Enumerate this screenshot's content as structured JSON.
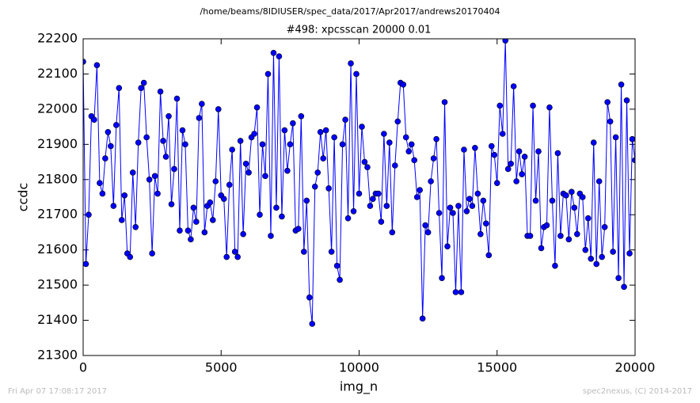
{
  "chart_data": {
    "type": "line",
    "suptitle": "/home/beams/8IDIUSER/spec_data/2017/Apr2017/andrews20170404",
    "title": "#498: xpcsscan 20000 0.01",
    "xlabel": "img_n",
    "ylabel": "ccdc",
    "footer_left": "Fri Apr 07 17:08:17 2017",
    "footer_right": "spec2nexus, (C) 2014-2017",
    "xlim": [
      0,
      20000
    ],
    "xticks": [
      0,
      5000,
      10000,
      15000,
      20000
    ],
    "ylim": [
      21300,
      22200
    ],
    "yticks": [
      21300,
      21400,
      21500,
      21600,
      21700,
      21800,
      21900,
      22000,
      22100,
      22200
    ],
    "grid": false,
    "x": [
      0,
      100,
      200,
      300,
      400,
      500,
      600,
      700,
      800,
      900,
      1000,
      1100,
      1200,
      1300,
      1400,
      1500,
      1600,
      1700,
      1800,
      1900,
      2000,
      2100,
      2200,
      2300,
      2400,
      2500,
      2600,
      2700,
      2800,
      2900,
      3000,
      3100,
      3200,
      3300,
      3400,
      3500,
      3600,
      3700,
      3800,
      3900,
      4000,
      4100,
      4200,
      4300,
      4400,
      4500,
      4600,
      4700,
      4800,
      4900,
      5000,
      5100,
      5200,
      5300,
      5400,
      5500,
      5600,
      5700,
      5800,
      5900,
      6000,
      6100,
      6200,
      6300,
      6400,
      6500,
      6600,
      6700,
      6800,
      6900,
      7000,
      7100,
      7200,
      7300,
      7400,
      7500,
      7600,
      7700,
      7800,
      7900,
      8000,
      8100,
      8200,
      8300,
      8400,
      8500,
      8600,
      8700,
      8800,
      8900,
      9000,
      9100,
      9200,
      9300,
      9400,
      9500,
      9600,
      9700,
      9800,
      9900,
      10000,
      10100,
      10200,
      10300,
      10400,
      10500,
      10600,
      10700,
      10800,
      10900,
      11000,
      11100,
      11200,
      11300,
      11400,
      11500,
      11600,
      11700,
      11800,
      11900,
      12000,
      12100,
      12200,
      12300,
      12400,
      12500,
      12600,
      12700,
      12800,
      12900,
      13000,
      13100,
      13200,
      13300,
      13400,
      13500,
      13600,
      13700,
      13800,
      13900,
      14000,
      14100,
      14200,
      14300,
      14400,
      14500,
      14600,
      14700,
      14800,
      14900,
      15000,
      15100,
      15200,
      15300,
      15400,
      15500,
      15600,
      15700,
      15800,
      15900,
      16000,
      16100,
      16200,
      16300,
      16400,
      16500,
      16600,
      16700,
      16800,
      16900,
      17000,
      17100,
      17200,
      17300,
      17400,
      17500,
      17600,
      17700,
      17800,
      17900,
      18000,
      18100,
      18200,
      18300,
      18400,
      18500,
      18600,
      18700,
      18800,
      18900,
      19000,
      19100,
      19200,
      19300,
      19400,
      19500,
      19600,
      19700,
      19800,
      19900,
      20000
    ],
    "series": [
      {
        "color": "#0000ff",
        "values": [
          22135,
          21560,
          21700,
          21980,
          21970,
          22125,
          21790,
          21760,
          21860,
          21935,
          21895,
          21725,
          21955,
          22060,
          21685,
          21755,
          21590,
          21580,
          21820,
          21665,
          21905,
          22060,
          22075,
          21920,
          21800,
          21590,
          21810,
          21760,
          22050,
          21910,
          21865,
          21980,
          21730,
          21830,
          22030,
          21655,
          21940,
          21900,
          21655,
          21630,
          21720,
          21680,
          21975,
          22015,
          21650,
          21725,
          21735,
          21685,
          21795,
          22000,
          21755,
          21745,
          21580,
          21785,
          21885,
          21595,
          21580,
          21910,
          21645,
          21845,
          21820,
          21920,
          21930,
          22005,
          21700,
          21900,
          21810,
          22100,
          21640,
          22160,
          21720,
          22150,
          21695,
          21940,
          21825,
          21900,
          21960,
          21655,
          21660,
          21980,
          21595,
          21740,
          21465,
          21390,
          21780,
          21820,
          21935,
          21860,
          21940,
          21775,
          21595,
          21920,
          21555,
          21515,
          21900,
          21970,
          21690,
          22130,
          21710,
          22100,
          21760,
          21950,
          21850,
          21835,
          21725,
          21745,
          21760,
          21760,
          21680,
          21930,
          21725,
          21905,
          21650,
          21840,
          21965,
          22075,
          22070,
          21920,
          21880,
          21900,
          21855,
          21750,
          21770,
          21405,
          21670,
          21650,
          21795,
          21860,
          21915,
          21705,
          21520,
          22020,
          21610,
          21720,
          21705,
          21480,
          21725,
          21480,
          21885,
          21710,
          21745,
          21725,
          21890,
          21760,
          21645,
          21740,
          21675,
          21585,
          21895,
          21870,
          21790,
          22010,
          21930,
          22195,
          21830,
          21845,
          22065,
          21795,
          21880,
          21815,
          21865,
          21640,
          21640,
          22010,
          21740,
          21880,
          21605,
          21665,
          21670,
          22005,
          21740,
          21555,
          21875,
          21640,
          21760,
          21755,
          21630,
          21765,
          21720,
          21645,
          21760,
          21750,
          21600,
          21690,
          21575,
          21905,
          21560,
          21795,
          21580,
          21665,
          22020,
          21965,
          21595,
          21920,
          21520,
          22070,
          21495,
          22025,
          21590,
          21915,
          21855
        ]
      }
    ]
  }
}
